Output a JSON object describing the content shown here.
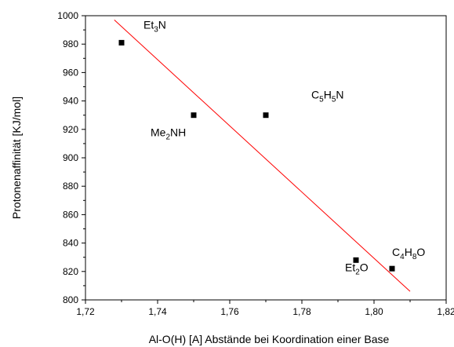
{
  "chart_data": {
    "type": "scatter",
    "title": "",
    "xlabel": "Al-O(H) [A] Abstände bei Koordination einer Base",
    "ylabel": "Protonenaffinität [KJ/mol]",
    "xlim": [
      1.72,
      1.82
    ],
    "ylim": [
      800,
      1000
    ],
    "x_ticks": [
      {
        "value": 1.72,
        "label": "1,72"
      },
      {
        "value": 1.74,
        "label": "1,74"
      },
      {
        "value": 1.76,
        "label": "1,76"
      },
      {
        "value": 1.78,
        "label": "1,78"
      },
      {
        "value": 1.8,
        "label": "1,80"
      },
      {
        "value": 1.82,
        "label": "1,82"
      }
    ],
    "y_ticks": [
      {
        "value": 800,
        "label": "800"
      },
      {
        "value": 820,
        "label": "820"
      },
      {
        "value": 840,
        "label": "840"
      },
      {
        "value": 860,
        "label": "860"
      },
      {
        "value": 880,
        "label": "880"
      },
      {
        "value": 900,
        "label": "900"
      },
      {
        "value": 920,
        "label": "920"
      },
      {
        "value": 940,
        "label": "940"
      },
      {
        "value": 960,
        "label": "960"
      },
      {
        "value": 980,
        "label": "980"
      },
      {
        "value": 1000,
        "label": "1000"
      }
    ],
    "grid": false,
    "marker_color": "#000000",
    "fit_line_color": "#ff0000",
    "points": [
      {
        "x": 1.73,
        "y": 981,
        "label": [
          {
            "t": "Et"
          },
          {
            "t": "3",
            "sub": true
          },
          {
            "t": "N"
          }
        ]
      },
      {
        "x": 1.75,
        "y": 930,
        "label": [
          {
            "t": "Me"
          },
          {
            "t": "2",
            "sub": true
          },
          {
            "t": "NH"
          }
        ]
      },
      {
        "x": 1.77,
        "y": 930,
        "label": [
          {
            "t": "C"
          },
          {
            "t": "5",
            "sub": true
          },
          {
            "t": "H"
          },
          {
            "t": "5",
            "sub": true
          },
          {
            "t": "N"
          }
        ]
      },
      {
        "x": 1.795,
        "y": 828,
        "label": [
          {
            "t": "Et"
          },
          {
            "t": "2",
            "sub": true
          },
          {
            "t": "O"
          }
        ]
      },
      {
        "x": 1.805,
        "y": 822,
        "label": [
          {
            "t": "C"
          },
          {
            "t": "4",
            "sub": true
          },
          {
            "t": "H"
          },
          {
            "t": "8",
            "sub": true
          },
          {
            "t": "O"
          }
        ]
      }
    ],
    "fit_line": {
      "x": [
        1.728,
        1.81
      ],
      "y": [
        997,
        806
      ]
    }
  }
}
